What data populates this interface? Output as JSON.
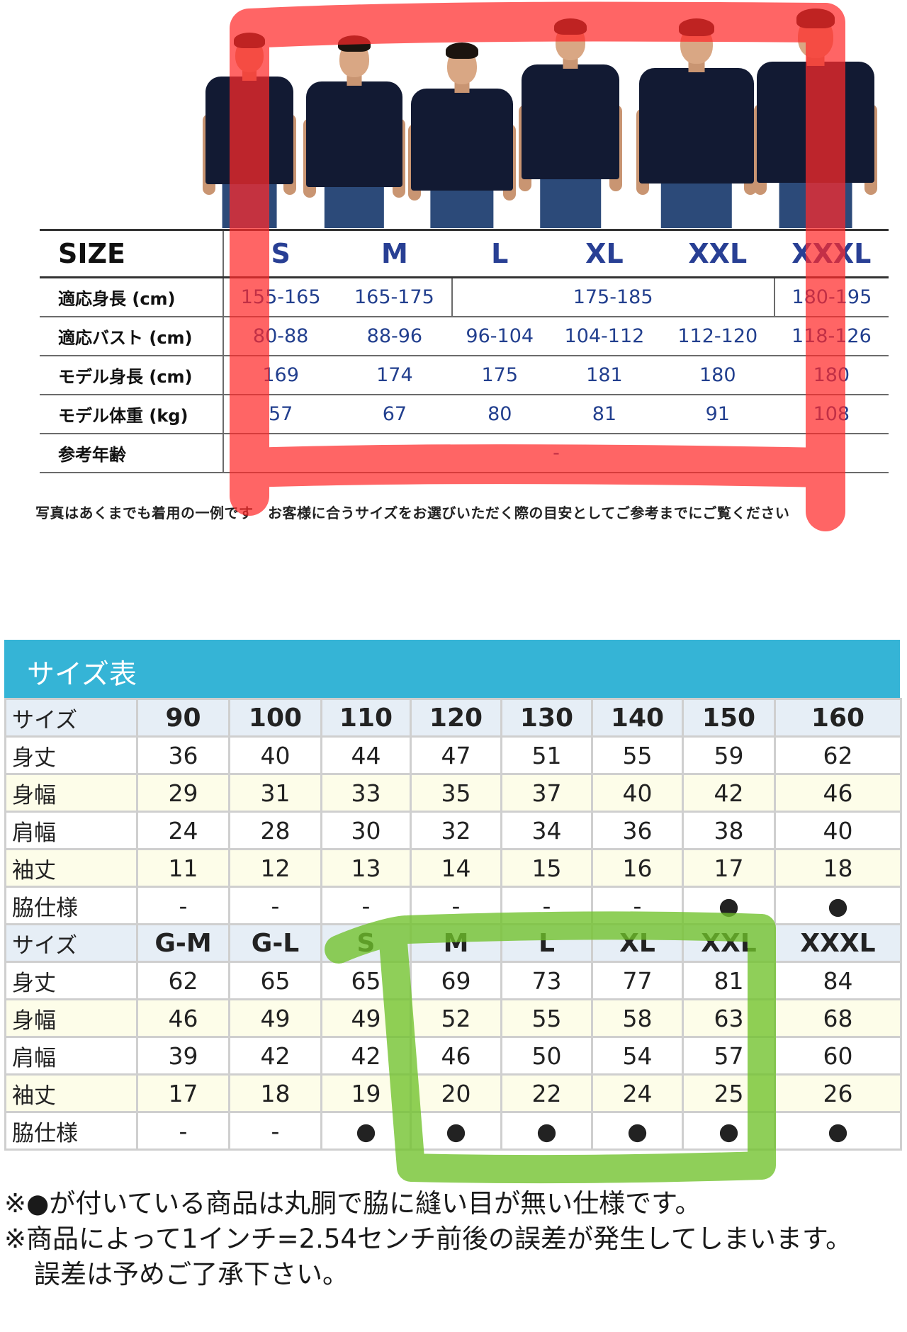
{
  "size_guide": {
    "header": [
      "SIZE",
      "S",
      "M",
      "L",
      "XL",
      "XXL",
      "XXXL"
    ],
    "rows": [
      {
        "label": "適応身長 (cm)",
        "cells": [
          "155-165",
          "165-175",
          "175-185",
          "180-195"
        ]
      },
      {
        "label": "適応バスト (cm)",
        "cells": [
          "80-88",
          "88-96",
          "96-104",
          "104-112",
          "112-120",
          "118-126"
        ]
      },
      {
        "label": "モデル身長 (cm)",
        "cells": [
          "169",
          "174",
          "175",
          "181",
          "180",
          "180"
        ]
      },
      {
        "label": "モデル体重 (kg)",
        "cells": [
          "57",
          "67",
          "80",
          "81",
          "91",
          "108"
        ]
      },
      {
        "label": "参考年齢",
        "cells": [
          "-"
        ]
      }
    ],
    "note": "写真はあくまでも着用の一例です　お客様に合うサイズをお選びいただく際の目安としてご参考までにご覧ください"
  },
  "size_table": {
    "title": "サイズ表",
    "rows": [
      {
        "type": "head",
        "label": "サイズ",
        "cells": [
          "90",
          "100",
          "110",
          "120",
          "130",
          "140",
          "150",
          "160"
        ]
      },
      {
        "type": "plain",
        "label": "身丈",
        "cells": [
          "36",
          "40",
          "44",
          "47",
          "51",
          "55",
          "59",
          "62"
        ]
      },
      {
        "type": "alt",
        "label": "身幅",
        "cells": [
          "29",
          "31",
          "33",
          "35",
          "37",
          "40",
          "42",
          "46"
        ]
      },
      {
        "type": "plain",
        "label": "肩幅",
        "cells": [
          "24",
          "28",
          "30",
          "32",
          "34",
          "36",
          "38",
          "40"
        ]
      },
      {
        "type": "alt",
        "label": "袖丈",
        "cells": [
          "11",
          "12",
          "13",
          "14",
          "15",
          "16",
          "17",
          "18"
        ]
      },
      {
        "type": "plain",
        "label": "脇仕様",
        "cells": [
          "-",
          "-",
          "-",
          "-",
          "-",
          "-",
          "●",
          "●"
        ]
      },
      {
        "type": "head",
        "label": "サイズ",
        "cells": [
          "G-M",
          "G-L",
          "S",
          "M",
          "L",
          "XL",
          "XXL",
          "XXXL"
        ]
      },
      {
        "type": "plain",
        "label": "身丈",
        "cells": [
          "62",
          "65",
          "65",
          "69",
          "73",
          "77",
          "81",
          "84"
        ]
      },
      {
        "type": "alt",
        "label": "身幅",
        "cells": [
          "46",
          "49",
          "49",
          "52",
          "55",
          "58",
          "63",
          "68"
        ]
      },
      {
        "type": "plain",
        "label": "肩幅",
        "cells": [
          "39",
          "42",
          "42",
          "46",
          "50",
          "54",
          "57",
          "60"
        ]
      },
      {
        "type": "alt",
        "label": "袖丈",
        "cells": [
          "17",
          "18",
          "19",
          "20",
          "22",
          "24",
          "25",
          "26"
        ]
      },
      {
        "type": "plain",
        "label": "脇仕様",
        "cells": [
          "-",
          "-",
          "●",
          "●",
          "●",
          "●",
          "●",
          "●"
        ]
      }
    ]
  },
  "footnotes": [
    "※●が付いている商品は丸胴で脇に縫い目が無い仕様です。",
    "※商品によって1インチ=2.54センチ前後の誤差が発生してしまいます。",
    "誤差は予めご了承下さい。"
  ],
  "colors": {
    "header_bar": "#35b4d6",
    "size_letters": "#283f94",
    "red_marker": "#ff2a2a",
    "green_marker": "#6fc22a"
  }
}
